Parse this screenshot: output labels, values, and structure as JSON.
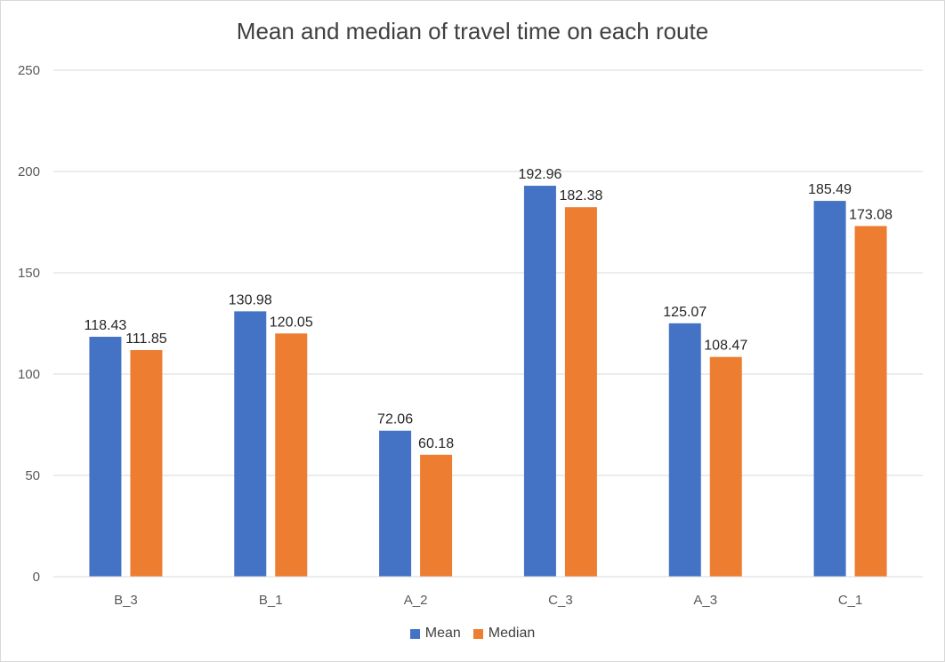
{
  "chart_data": {
    "type": "bar",
    "title": "Mean and median of travel time on each route",
    "xlabel": "",
    "ylabel": "",
    "categories": [
      "B_3",
      "B_1",
      "A_2",
      "C_3",
      "A_3",
      "C_1"
    ],
    "series": [
      {
        "name": "Mean",
        "color": "#4472c4",
        "values": [
          118.43,
          130.98,
          72.06,
          192.96,
          125.07,
          185.49
        ]
      },
      {
        "name": "Median",
        "color": "#ed7d31",
        "values": [
          111.85,
          120.05,
          60.18,
          182.38,
          108.47,
          173.08
        ]
      }
    ],
    "ylim": [
      0,
      250
    ],
    "yticks": [
      "0",
      "50",
      "100",
      "150",
      "200",
      "250"
    ],
    "grid": true,
    "legend_position": "bottom",
    "data_labels": true
  }
}
